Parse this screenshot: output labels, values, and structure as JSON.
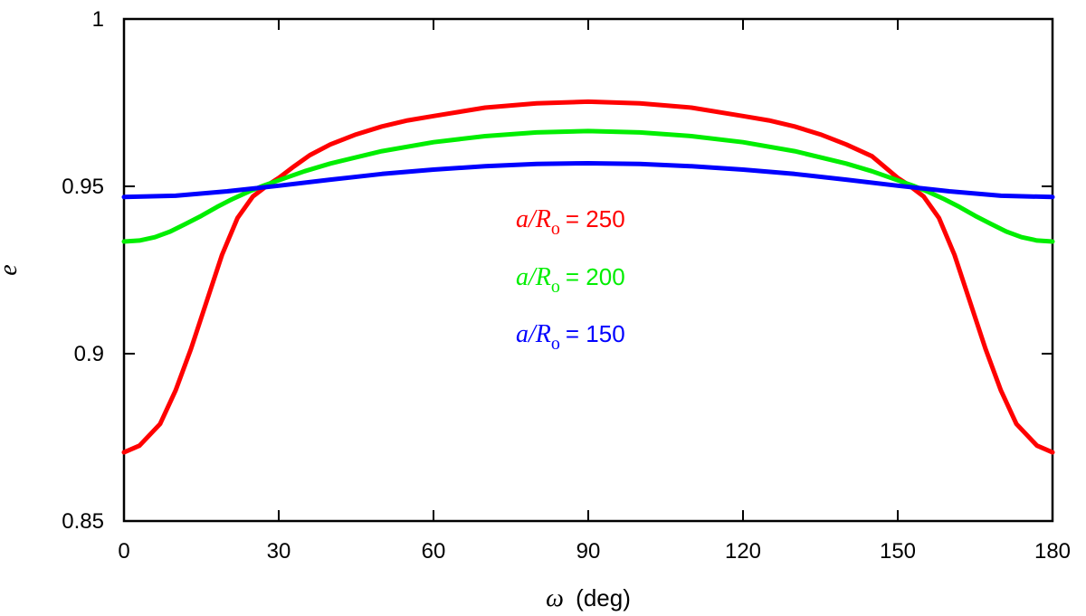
{
  "chart_data": {
    "type": "line",
    "title": "",
    "xlabel": {
      "symbol": "ω",
      "unit": "(deg)"
    },
    "ylabel": "e",
    "xlim": [
      0,
      180
    ],
    "ylim": [
      0.85,
      1.0
    ],
    "x_ticks": [
      0,
      30,
      60,
      90,
      120,
      150,
      180
    ],
    "x_tick_labels": [
      "0",
      "30",
      "60",
      "90",
      "120",
      "150",
      "180"
    ],
    "y_ticks": [
      0.85,
      0.9,
      0.95,
      1.0
    ],
    "y_tick_labels": [
      "0.85",
      "0.9",
      "0.95",
      "1"
    ],
    "grid": false,
    "legend_position": "center",
    "series": [
      {
        "name": "a/R_o = 250",
        "label_var": "a/R",
        "label_sub": "o",
        "label_value": "= 250",
        "color": "#ff0000",
        "x": [
          0,
          3,
          7,
          10,
          13,
          16,
          19,
          22,
          25,
          28,
          30,
          33,
          36,
          40,
          45,
          50,
          55,
          60,
          70,
          80,
          90,
          100,
          110,
          120,
          125,
          130,
          135,
          140,
          145,
          150,
          152,
          155,
          158,
          161,
          164,
          167,
          170,
          173,
          177,
          180
        ],
        "y": [
          0.8705,
          0.8725,
          0.879,
          0.889,
          0.9015,
          0.9155,
          0.9295,
          0.9405,
          0.947,
          0.9505,
          0.9525,
          0.956,
          0.9593,
          0.9625,
          0.9655,
          0.9679,
          0.9697,
          0.971,
          0.9735,
          0.9748,
          0.9753,
          0.9748,
          0.9735,
          0.971,
          0.9697,
          0.9679,
          0.9655,
          0.9625,
          0.959,
          0.9525,
          0.9505,
          0.947,
          0.9405,
          0.9295,
          0.9155,
          0.9015,
          0.889,
          0.879,
          0.8725,
          0.8705
        ]
      },
      {
        "name": "a/R_o = 200",
        "label_var": "a/R",
        "label_sub": "o",
        "label_value": "= 200",
        "color": "#00ee00",
        "x": [
          0,
          3,
          6,
          9,
          12,
          15,
          18,
          21,
          24,
          27,
          30,
          35,
          40,
          50,
          60,
          70,
          80,
          90,
          100,
          110,
          120,
          130,
          140,
          145,
          150,
          153,
          156,
          159,
          162,
          165,
          168,
          171,
          174,
          177,
          180
        ],
        "y": [
          0.9335,
          0.9338,
          0.9348,
          0.9365,
          0.9388,
          0.9412,
          0.9438,
          0.9462,
          0.9483,
          0.9502,
          0.9518,
          0.9545,
          0.9568,
          0.9605,
          0.9632,
          0.965,
          0.9661,
          0.9665,
          0.9661,
          0.965,
          0.9632,
          0.9605,
          0.9568,
          0.9545,
          0.9518,
          0.9502,
          0.9483,
          0.9462,
          0.9438,
          0.9412,
          0.9388,
          0.9365,
          0.9348,
          0.9338,
          0.9335
        ]
      },
      {
        "name": "a/R_o = 150",
        "label_var": "a/R",
        "label_sub": "o",
        "label_value": "= 150",
        "color": "#0000ff",
        "x": [
          0,
          10,
          20,
          30,
          40,
          50,
          60,
          70,
          80,
          90,
          100,
          110,
          120,
          130,
          140,
          150,
          160,
          170,
          180
        ],
        "y": [
          0.9468,
          0.9472,
          0.9485,
          0.9502,
          0.952,
          0.9537,
          0.955,
          0.956,
          0.9567,
          0.9569,
          0.9567,
          0.956,
          0.955,
          0.9537,
          0.952,
          0.9502,
          0.9485,
          0.9472,
          0.9468
        ]
      }
    ]
  }
}
